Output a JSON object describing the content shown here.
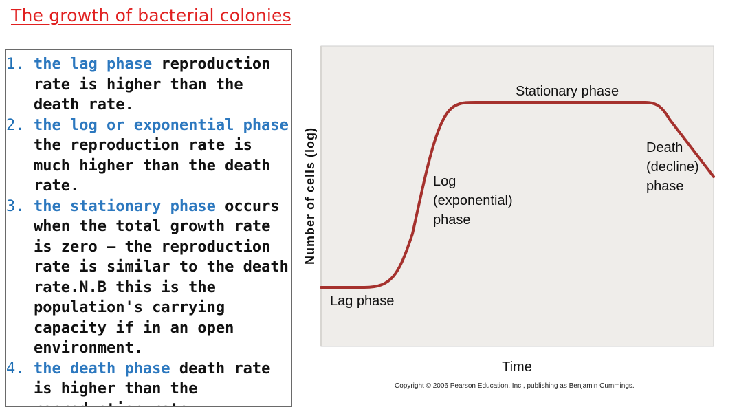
{
  "title": "The growth of bacterial colonies",
  "phases": [
    {
      "number": "1.",
      "highlight": "the lag phase",
      "rest": " reproduction rate is higher than the death rate."
    },
    {
      "number": "2.",
      "highlight": "the log or exponential phase",
      "rest": " the reproduction rate is much higher than the death rate."
    },
    {
      "number": "3.",
      "highlight": "the stationary phase",
      "rest": " occurs when the total growth rate is zero – the reproduction rate is similar to the death rate.N.B this is the population's carrying capacity if in an open environment."
    },
    {
      "number": "4.",
      "highlight": "the death phase",
      "rest": " death rate is higher than the reproduction rate."
    }
  ],
  "chart": {
    "y_axis_label": "Number of cells (log)",
    "x_axis_label": "Time",
    "labels": {
      "lag": "Lag phase",
      "log": [
        "Log",
        "(exponential)",
        "phase"
      ],
      "stationary": "Stationary phase",
      "death": [
        "Death",
        "(decline)",
        "phase"
      ]
    },
    "colors": {
      "curve": "#a5312d",
      "plot_bg": "#efedea",
      "highlight": "#2c78bf",
      "title": "#e02020"
    }
  },
  "copyright": "Copyright © 2006 Pearson Education, Inc., publishing as Benjamin Cummings."
}
